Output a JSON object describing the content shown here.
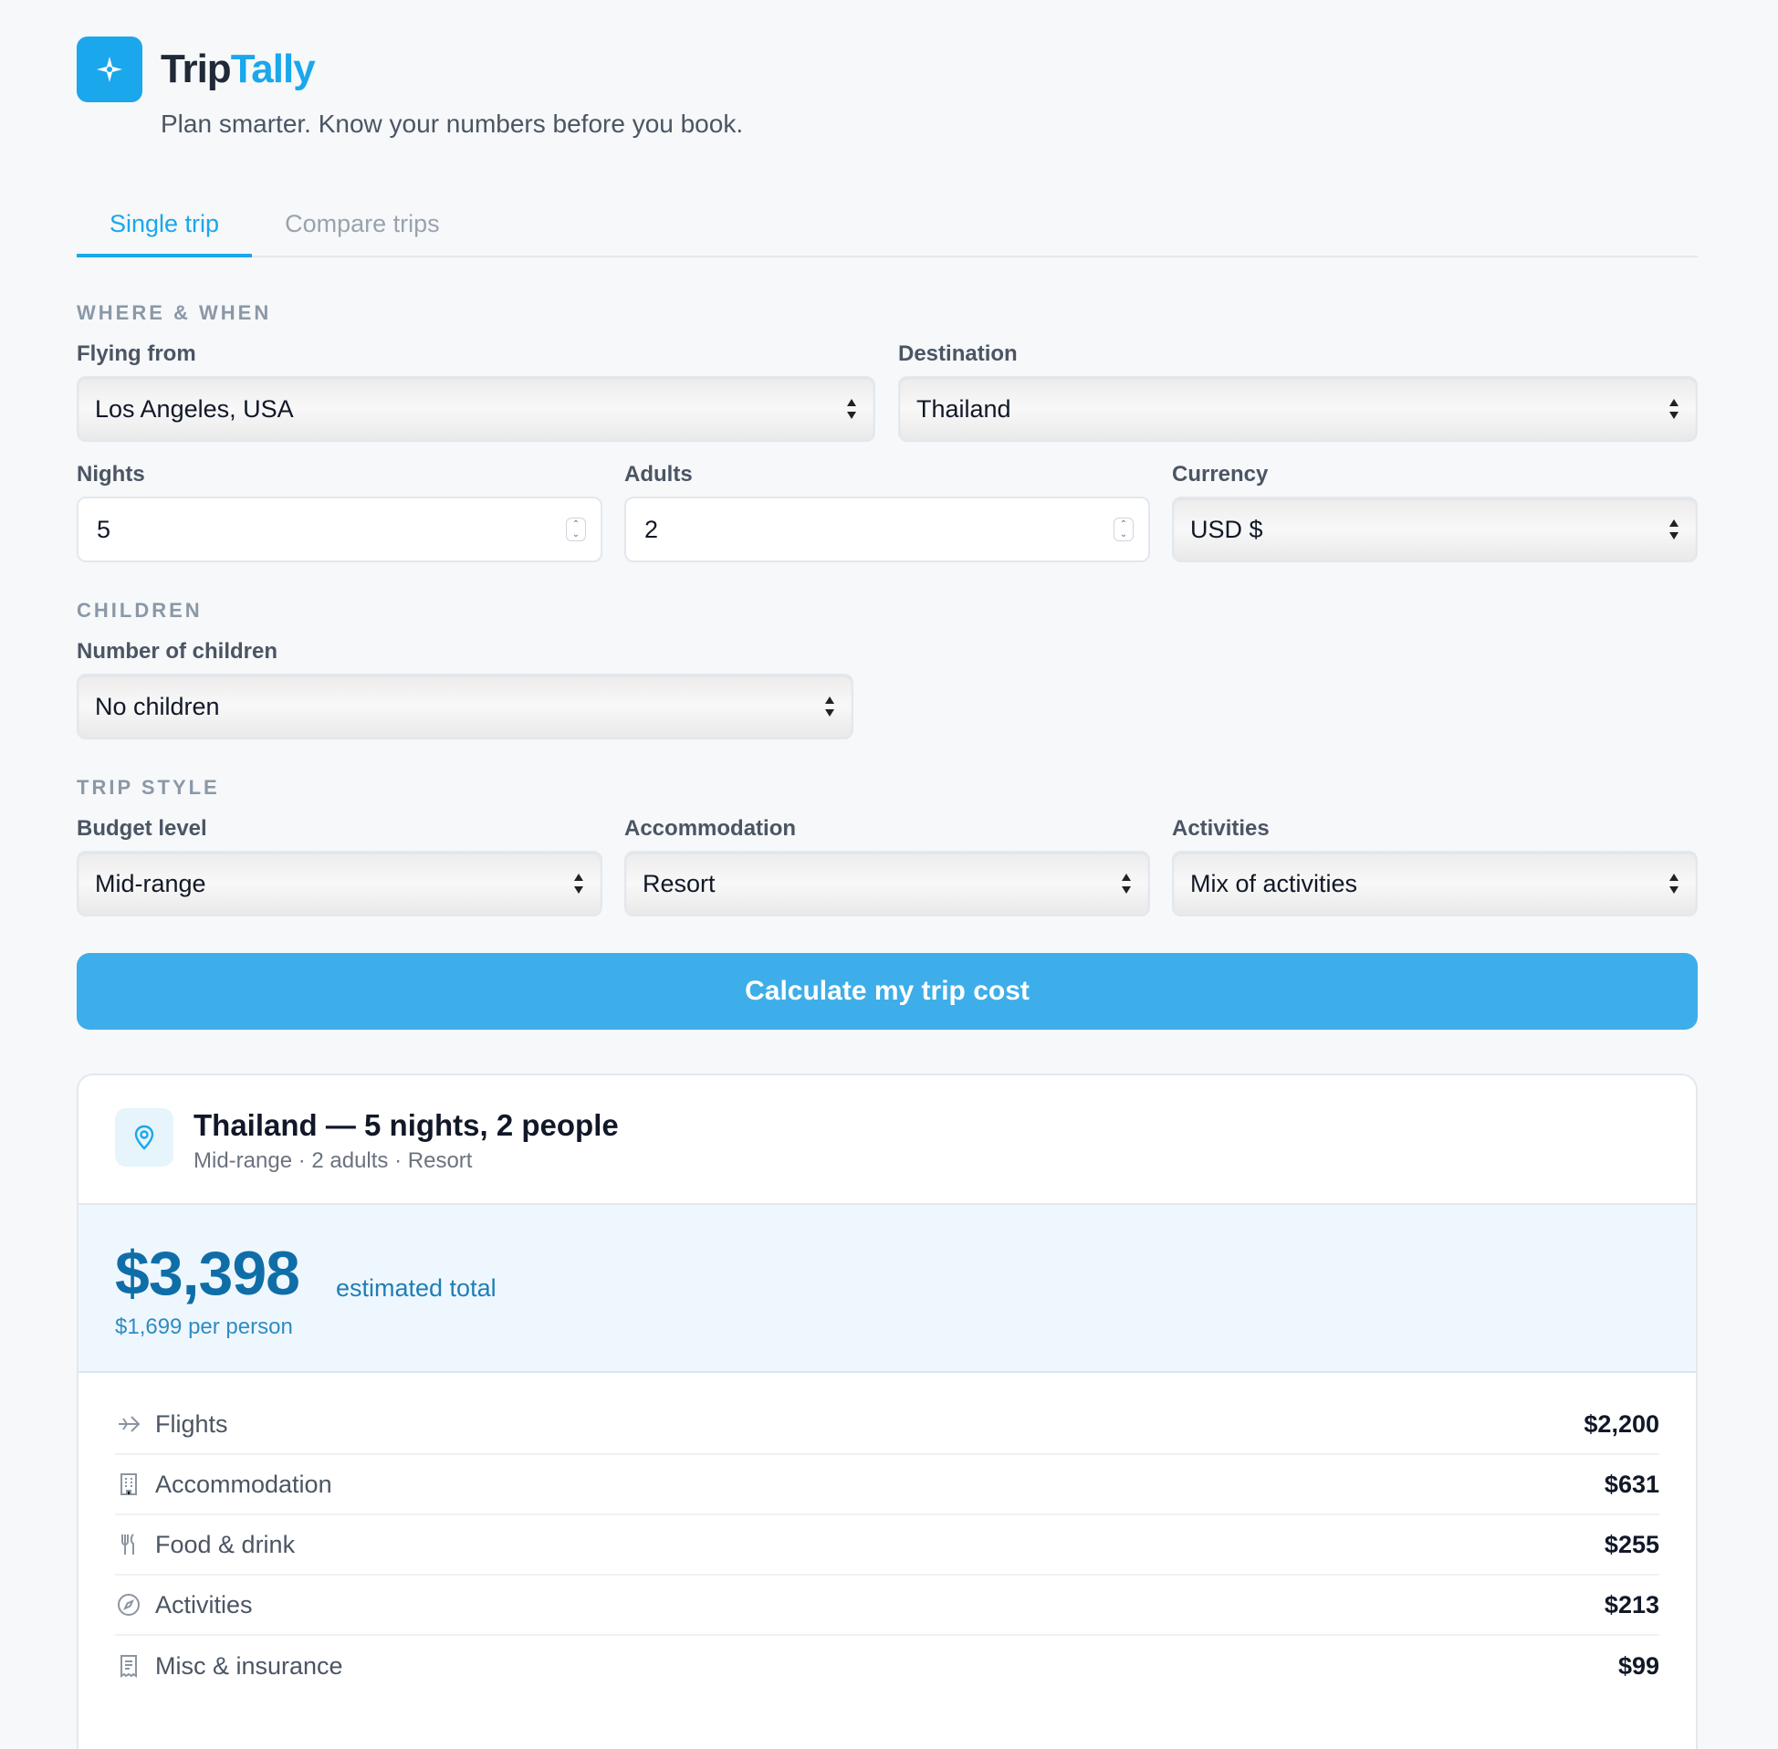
{
  "brand": {
    "part1": "Trip",
    "part2": "Tally",
    "tagline": "Plan smarter. Know your numbers before you book."
  },
  "tabs": [
    {
      "label": "Single trip"
    },
    {
      "label": "Compare trips"
    }
  ],
  "sections": {
    "where": "WHERE & WHEN",
    "children": "CHILDREN",
    "style": "TRIP STYLE"
  },
  "form": {
    "flying_from": {
      "label": "Flying from",
      "value": "Los Angeles, USA"
    },
    "destination": {
      "label": "Destination",
      "value": "Thailand"
    },
    "nights": {
      "label": "Nights",
      "value": "5"
    },
    "adults": {
      "label": "Adults",
      "value": "2"
    },
    "currency": {
      "label": "Currency",
      "value": "USD $"
    },
    "children": {
      "label": "Number of children",
      "value": "No children"
    },
    "budget": {
      "label": "Budget level",
      "value": "Mid-range"
    },
    "accommodation": {
      "label": "Accommodation",
      "value": "Resort"
    },
    "activities": {
      "label": "Activities",
      "value": "Mix of activities"
    }
  },
  "cta": "Calculate my trip cost",
  "result": {
    "title": "Thailand — 5 nights, 2 people",
    "subtitle": "Mid-range · 2 adults · Resort",
    "total": "$3,398",
    "total_label": "estimated total",
    "per_person": "$1,699 per person",
    "breakdown": [
      {
        "icon": "plane-icon",
        "label": "Flights",
        "value": "$2,200"
      },
      {
        "icon": "building-icon",
        "label": "Accommodation",
        "value": "$631"
      },
      {
        "icon": "utensils-icon",
        "label": "Food & drink",
        "value": "$255"
      },
      {
        "icon": "compass-icon",
        "label": "Activities",
        "value": "$213"
      },
      {
        "icon": "receipt-icon",
        "label": "Misc & insurance",
        "value": "$99"
      }
    ]
  },
  "colors": {
    "accent": "#1aa7ec",
    "button": "#3daee9",
    "total": "#0f6ea8"
  }
}
